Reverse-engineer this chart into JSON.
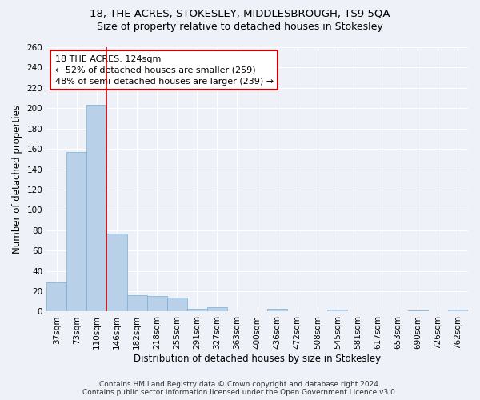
{
  "title": "18, THE ACRES, STOKESLEY, MIDDLESBROUGH, TS9 5QA",
  "subtitle": "Size of property relative to detached houses in Stokesley",
  "xlabel": "Distribution of detached houses by size in Stokesley",
  "ylabel": "Number of detached properties",
  "categories": [
    "37sqm",
    "73sqm",
    "110sqm",
    "146sqm",
    "182sqm",
    "218sqm",
    "255sqm",
    "291sqm",
    "327sqm",
    "363sqm",
    "400sqm",
    "436sqm",
    "472sqm",
    "508sqm",
    "545sqm",
    "581sqm",
    "617sqm",
    "653sqm",
    "690sqm",
    "726sqm",
    "762sqm"
  ],
  "values": [
    29,
    157,
    203,
    77,
    16,
    15,
    14,
    3,
    4,
    0,
    0,
    3,
    0,
    0,
    2,
    0,
    0,
    0,
    1,
    0,
    2
  ],
  "bar_color": "#b8d0e8",
  "bar_edge_color": "#7aaed4",
  "bar_edge_width": 0.5,
  "vline_x": 2.5,
  "vline_color": "#cc0000",
  "annotation_line1": "18 THE ACRES: 124sqm",
  "annotation_line2": "← 52% of detached houses are smaller (259)",
  "annotation_line3": "48% of semi-detached houses are larger (239) →",
  "annotation_box_color": "#ffffff",
  "annotation_box_edge": "#cc0000",
  "ylim": [
    0,
    260
  ],
  "yticks": [
    0,
    20,
    40,
    60,
    80,
    100,
    120,
    140,
    160,
    180,
    200,
    220,
    240,
    260
  ],
  "footer_line1": "Contains HM Land Registry data © Crown copyright and database right 2024.",
  "footer_line2": "Contains public sector information licensed under the Open Government Licence v3.0.",
  "bg_color": "#eef2f8",
  "grid_color": "#ffffff",
  "title_fontsize": 9.5,
  "subtitle_fontsize": 9,
  "axis_label_fontsize": 8.5,
  "tick_fontsize": 7.5,
  "annotation_fontsize": 8,
  "footer_fontsize": 6.5
}
